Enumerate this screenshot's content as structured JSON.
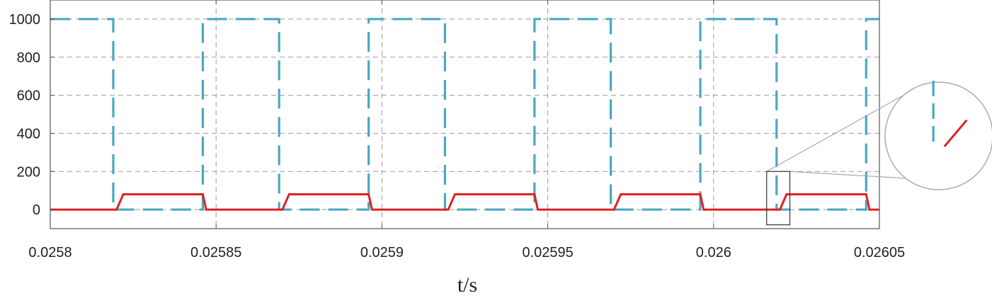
{
  "chart_data": {
    "type": "line",
    "title": "",
    "xlabel": "t/s",
    "ylabel": "",
    "xlim": [
      0.0258,
      0.02605
    ],
    "ylim": [
      -100,
      1100
    ],
    "x_ticks": [
      0.0258,
      0.02585,
      0.0259,
      0.02595,
      0.026,
      0.02605
    ],
    "x_tick_labels": [
      "0.0258",
      "0.02585",
      "0.0259",
      "0.02595",
      "0.026",
      "0.02605"
    ],
    "y_ticks": [
      0,
      200,
      400,
      600,
      800,
      1000
    ],
    "y_tick_labels": [
      "0",
      "200",
      "400",
      "600",
      "800",
      "1000"
    ],
    "grid": true,
    "legend": "none",
    "series": [
      {
        "color": "#4aa8c0",
        "style": "dashed",
        "x": [
          0.0258,
          0.025819,
          0.025819,
          0.025846,
          0.025846,
          0.025869,
          0.025869,
          0.025896,
          0.025896,
          0.025919,
          0.025919,
          0.025946,
          0.025946,
          0.025969,
          0.025969,
          0.025996,
          0.025996,
          0.026019,
          0.026019,
          0.026046,
          0.026046,
          0.02605
        ],
        "y": [
          1000,
          1000,
          0,
          0,
          1000,
          1000,
          0,
          0,
          1000,
          1000,
          0,
          0,
          1000,
          1000,
          0,
          0,
          1000,
          1000,
          0,
          0,
          1000,
          1000
        ]
      },
      {
        "color": "#e02020",
        "style": "solid",
        "x": [
          0.0258,
          0.02582,
          0.025822,
          0.025846,
          0.025847,
          0.02587,
          0.025872,
          0.025896,
          0.025897,
          0.02592,
          0.025922,
          0.025946,
          0.025947,
          0.02597,
          0.025972,
          0.025996,
          0.025997,
          0.02602,
          0.026022,
          0.026046,
          0.026047,
          0.02605
        ],
        "y": [
          0,
          0,
          80,
          80,
          0,
          0,
          80,
          80,
          0,
          0,
          80,
          80,
          0,
          0,
          80,
          80,
          0,
          0,
          80,
          80,
          0,
          0
        ]
      }
    ],
    "inset": {
      "shape": "circle",
      "magnified_x_range": [
        0.026016,
        0.026023
      ],
      "magnified_y_range": [
        -80,
        200
      ],
      "position": "right"
    }
  }
}
